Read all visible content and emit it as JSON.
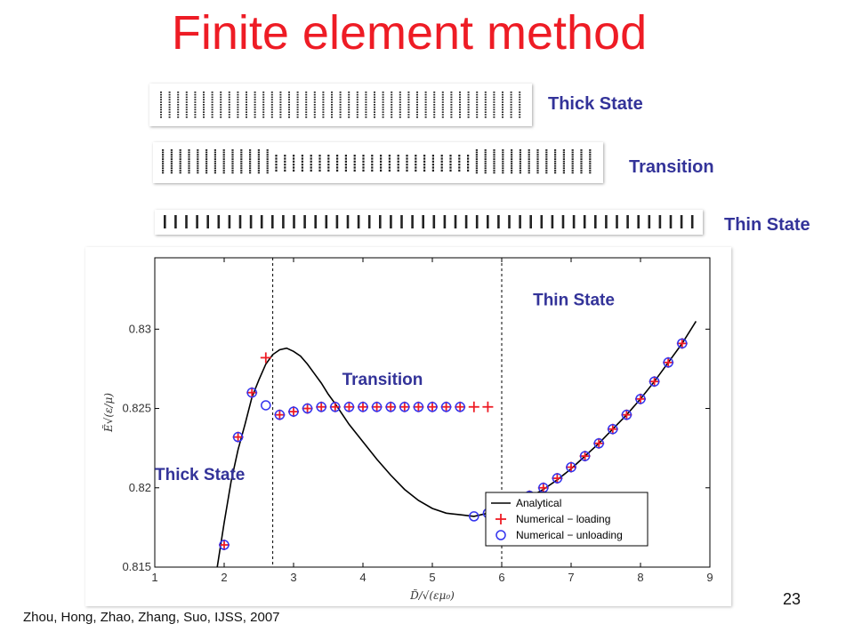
{
  "slide": {
    "title": "Finite element method",
    "citation": "Zhou, Hong, Zhao, Zhang, Suo, IJSS, 2007",
    "page_number": "23",
    "title_color": "#ee1c25",
    "label_color": "#333399"
  },
  "strips": [
    {
      "label": "Thick State",
      "type": "thick"
    },
    {
      "label": "Transition",
      "type": "transition"
    },
    {
      "label": "Thin State",
      "type": "thin"
    }
  ],
  "chart_data": {
    "type": "line",
    "xlabel": "D̃/√(εμ₀)",
    "ylabel": "Ẽ√(ε/μ)",
    "xlim": [
      1,
      9
    ],
    "ylim": [
      0.815,
      0.8345
    ],
    "xticks": [
      "1",
      "2",
      "3",
      "4",
      "5",
      "6",
      "7",
      "8",
      "9"
    ],
    "yticks": [
      "0.815",
      "0.82",
      "0.825",
      "0.83"
    ],
    "vertical_lines_x": [
      2.7,
      6.0
    ],
    "region_labels": [
      {
        "text": "Thick State",
        "x": 1.0,
        "y": 0.8205
      },
      {
        "text": "Transition",
        "x": 3.7,
        "y": 0.8265
      },
      {
        "text": "Thin State",
        "x": 6.45,
        "y": 0.8315
      }
    ],
    "legend": {
      "placement": "bottom-right",
      "entries": [
        "Analytical",
        "Numerical − loading",
        "Numerical − unloading"
      ]
    },
    "series": [
      {
        "name": "Analytical",
        "kind": "line",
        "color": "#000000",
        "x": [
          1.9,
          2.0,
          2.1,
          2.2,
          2.3,
          2.4,
          2.5,
          2.6,
          2.7,
          2.8,
          2.9,
          3.0,
          3.1,
          3.2,
          3.3,
          3.4,
          3.5,
          3.6,
          3.8,
          4.0,
          4.2,
          4.4,
          4.6,
          4.8,
          5.0,
          5.2,
          5.4,
          5.6,
          5.8,
          6.0,
          6.2,
          6.4,
          6.6,
          6.8,
          7.0,
          7.2,
          7.4,
          7.6,
          7.8,
          8.0,
          8.2,
          8.4,
          8.6,
          8.8
        ],
        "y": [
          0.815,
          0.8178,
          0.8204,
          0.8224,
          0.824,
          0.8257,
          0.8268,
          0.8278,
          0.8284,
          0.8287,
          0.8288,
          0.8286,
          0.8283,
          0.8278,
          0.8272,
          0.8266,
          0.8259,
          0.8253,
          0.824,
          0.8229,
          0.8218,
          0.8208,
          0.8199,
          0.8192,
          0.8187,
          0.8184,
          0.8183,
          0.8182,
          0.8184,
          0.8186,
          0.819,
          0.8194,
          0.8199,
          0.8205,
          0.8212,
          0.822,
          0.8228,
          0.8237,
          0.8246,
          0.8256,
          0.8267,
          0.8279,
          0.8291,
          0.8305
        ]
      },
      {
        "name": "Numerical − loading",
        "kind": "plus",
        "color": "#ee1c25",
        "x": [
          2.0,
          2.2,
          2.4,
          2.6,
          2.8,
          3.0,
          3.2,
          3.4,
          3.6,
          3.8,
          4.0,
          4.2,
          4.4,
          4.6,
          4.8,
          5.0,
          5.2,
          5.4,
          5.6,
          5.8,
          6.0,
          6.2,
          6.4,
          6.6,
          6.8,
          7.0,
          7.2,
          7.4,
          7.6,
          7.8,
          8.0,
          8.2,
          8.4,
          8.6
        ],
        "y": [
          0.8164,
          0.8232,
          0.826,
          0.8282,
          0.8246,
          0.8248,
          0.825,
          0.8251,
          0.8251,
          0.8251,
          0.8251,
          0.8251,
          0.8251,
          0.8251,
          0.8251,
          0.8251,
          0.8251,
          0.8251,
          0.8251,
          0.8251,
          0.8187,
          0.8191,
          0.8195,
          0.82,
          0.8206,
          0.8213,
          0.822,
          0.8228,
          0.8237,
          0.8246,
          0.8256,
          0.8267,
          0.8279,
          0.8291
        ]
      },
      {
        "name": "Numerical − unloading",
        "kind": "circle",
        "color": "#3333ee",
        "x": [
          2.0,
          2.2,
          2.4,
          2.6,
          2.8,
          3.0,
          3.2,
          3.4,
          3.6,
          3.8,
          4.0,
          4.2,
          4.4,
          4.6,
          4.8,
          5.0,
          5.2,
          5.4,
          5.6,
          5.8,
          6.0,
          6.2,
          6.4,
          6.6,
          6.8,
          7.0,
          7.2,
          7.4,
          7.6,
          7.8,
          8.0,
          8.2,
          8.4,
          8.6
        ],
        "y": [
          0.8164,
          0.8232,
          0.826,
          0.8252,
          0.8246,
          0.8248,
          0.825,
          0.8251,
          0.8251,
          0.8251,
          0.8251,
          0.8251,
          0.8251,
          0.8251,
          0.8251,
          0.8251,
          0.8251,
          0.8251,
          0.8182,
          0.8184,
          0.8187,
          0.8191,
          0.8195,
          0.82,
          0.8206,
          0.8213,
          0.822,
          0.8228,
          0.8237,
          0.8246,
          0.8256,
          0.8267,
          0.8279,
          0.8291
        ]
      }
    ]
  }
}
